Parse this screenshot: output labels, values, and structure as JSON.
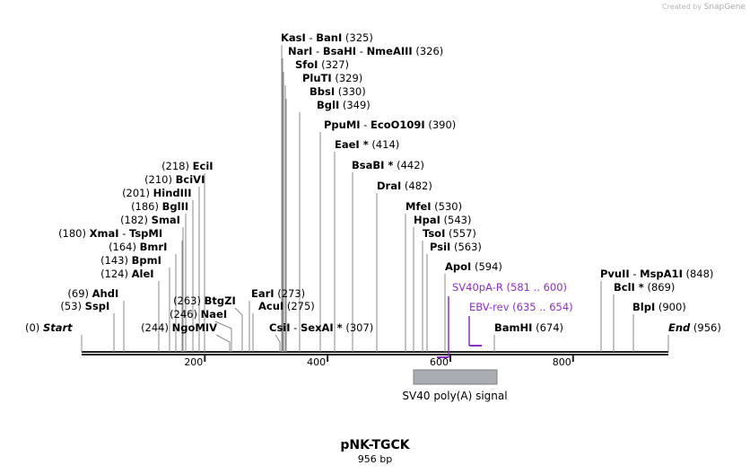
{
  "credit": {
    "prefix": "Created by",
    "brand": "SnapGene"
  },
  "plasmid": {
    "name": "pNK-TGCK",
    "length_label": "956 bp"
  },
  "colors": {
    "primer": "#8b2fc9",
    "feature": "#a9adb2",
    "line": "#222222",
    "leader": "#888888"
  },
  "axis": {
    "ticks": [
      {
        "label": "200"
      },
      {
        "label": "400"
      },
      {
        "label": "600"
      },
      {
        "label": "800"
      }
    ]
  },
  "sites": [
    {
      "id": "start",
      "names": [
        "Start"
      ],
      "pos": "(0)",
      "left": true
    },
    {
      "id": "sspi",
      "names": [
        "SspI"
      ],
      "pos": "(53)",
      "left": true
    },
    {
      "id": "ahdi",
      "names": [
        "AhdI"
      ],
      "pos": "(69)",
      "left": true
    },
    {
      "id": "alei",
      "names": [
        "AleI"
      ],
      "pos": "(124)",
      "left": true
    },
    {
      "id": "bpmi",
      "names": [
        "BpmI"
      ],
      "pos": "(143)",
      "left": true
    },
    {
      "id": "bmri",
      "names": [
        "BmrI"
      ],
      "pos": "(164)",
      "left": true
    },
    {
      "id": "xmai",
      "names": [
        "XmaI",
        "TspMI"
      ],
      "pos": "(180)",
      "left": true
    },
    {
      "id": "smai",
      "names": [
        "SmaI"
      ],
      "pos": "(182)",
      "left": true
    },
    {
      "id": "bglii",
      "names": [
        "BglII"
      ],
      "pos": "(186)",
      "left": true
    },
    {
      "id": "hindiii",
      "names": [
        "HindIII"
      ],
      "pos": "(201)",
      "left": true
    },
    {
      "id": "bcivi",
      "names": [
        "BciVI"
      ],
      "pos": "(210)",
      "left": true
    },
    {
      "id": "ecii",
      "names": [
        "EciI"
      ],
      "pos": "(218)",
      "left": true
    },
    {
      "id": "ngomiv",
      "names": [
        "NgoMIV"
      ],
      "pos": "(244)",
      "left": true
    },
    {
      "id": "naei",
      "names": [
        "NaeI"
      ],
      "pos": "(246)",
      "left": true
    },
    {
      "id": "btgzi",
      "names": [
        "BtgZI"
      ],
      "pos": "(263)",
      "left": true
    },
    {
      "id": "eari",
      "names": [
        "EarI"
      ],
      "pos": "(273)",
      "left": false
    },
    {
      "id": "acui",
      "names": [
        "AcuI"
      ],
      "pos": "(275)",
      "left": false
    },
    {
      "id": "csii",
      "names": [
        "CsiI",
        "SexAI *"
      ],
      "pos": "(307)",
      "left": false
    },
    {
      "id": "kasi",
      "names": [
        "KasI",
        "BanI"
      ],
      "pos": "(325)",
      "left": false
    },
    {
      "id": "nari",
      "names": [
        "NarI",
        "BsaHI",
        "NmeAIII"
      ],
      "pos": "(326)",
      "left": false
    },
    {
      "id": "sfoi",
      "names": [
        "SfoI"
      ],
      "pos": "(327)",
      "left": false
    },
    {
      "id": "pluti",
      "names": [
        "PluTI"
      ],
      "pos": "(329)",
      "left": false
    },
    {
      "id": "bbsi",
      "names": [
        "BbsI"
      ],
      "pos": "(330)",
      "left": false
    },
    {
      "id": "bgli",
      "names": [
        "BglI"
      ],
      "pos": "(349)",
      "left": false
    },
    {
      "id": "ppumi",
      "names": [
        "PpuMI",
        "EcoO109I"
      ],
      "pos": "(390)",
      "left": false
    },
    {
      "id": "eaei",
      "names": [
        "EaeI *"
      ],
      "pos": "(414)",
      "left": false
    },
    {
      "id": "bsabi",
      "names": [
        "BsaBI *"
      ],
      "pos": "(442)",
      "left": false
    },
    {
      "id": "drai",
      "names": [
        "DraI"
      ],
      "pos": "(482)",
      "left": false
    },
    {
      "id": "mfei",
      "names": [
        "MfeI"
      ],
      "pos": "(530)",
      "left": false
    },
    {
      "id": "hpai",
      "names": [
        "HpaI"
      ],
      "pos": "(543)",
      "left": false
    },
    {
      "id": "tsoi",
      "names": [
        "TsoI"
      ],
      "pos": "(557)",
      "left": false
    },
    {
      "id": "psii",
      "names": [
        "PsiI"
      ],
      "pos": "(563)",
      "left": false
    },
    {
      "id": "apoi",
      "names": [
        "ApoI"
      ],
      "pos": "(594)",
      "left": false
    },
    {
      "id": "bamhi",
      "names": [
        "BamHI"
      ],
      "pos": "(674)",
      "left": false
    },
    {
      "id": "pvuii",
      "names": [
        "PvuII",
        "MspA1I"
      ],
      "pos": "(848)",
      "left": false
    },
    {
      "id": "bcli",
      "names": [
        "BclI *"
      ],
      "pos": "(869)",
      "left": false
    },
    {
      "id": "blpi",
      "names": [
        "BlpI"
      ],
      "pos": "(900)",
      "left": false
    },
    {
      "id": "end",
      "names": [
        "End"
      ],
      "pos": "(956)",
      "left": false
    }
  ],
  "primers": [
    {
      "id": "sv40pa-r",
      "name": "SV40pA-R",
      "range": "(581 .. 600)"
    },
    {
      "id": "ebv-rev",
      "name": "EBV-rev",
      "range": "(635 .. 654)"
    }
  ],
  "features": [
    {
      "id": "sv40-polya",
      "name": "SV40 poly(A) signal"
    }
  ]
}
